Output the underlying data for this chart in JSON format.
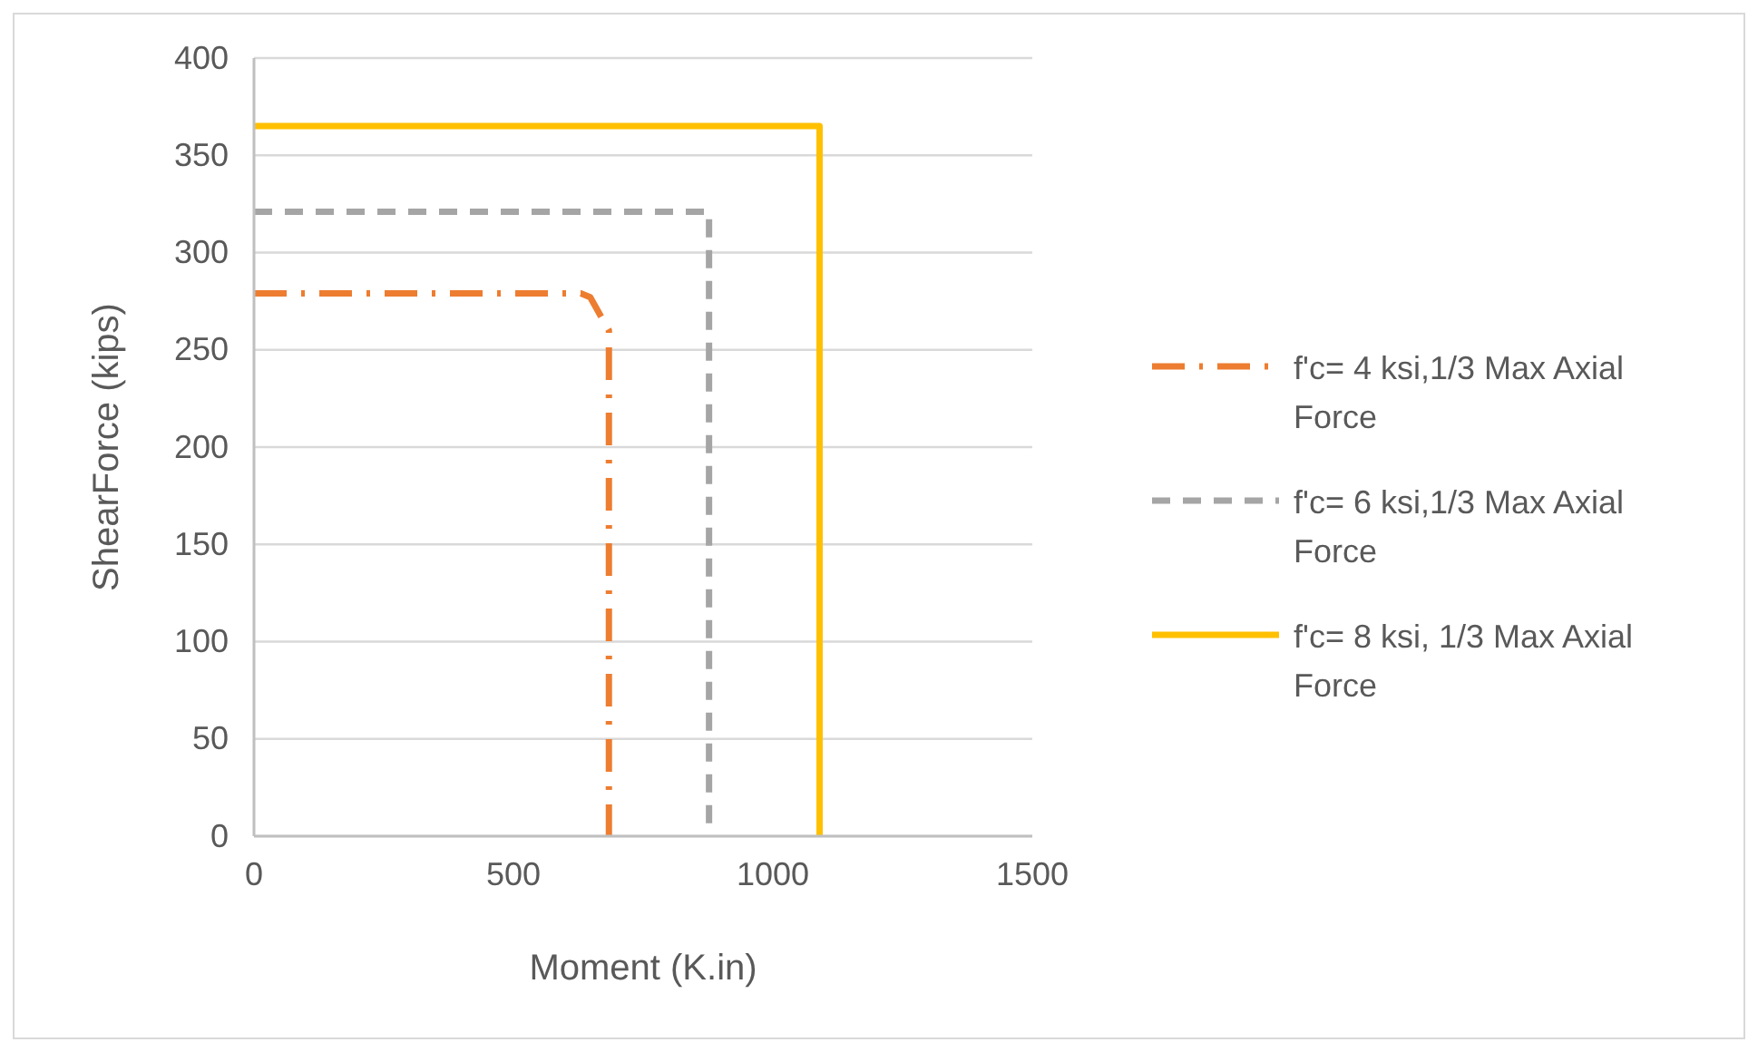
{
  "chart_data": {
    "type": "line",
    "xlabel": "Moment (K.in)",
    "ylabel": "ShearForce (kips)",
    "xlim": [
      0,
      1500
    ],
    "xticks": [
      0,
      500,
      1000,
      1500
    ],
    "ylim": [
      0,
      400
    ],
    "yticks": [
      0,
      50,
      100,
      150,
      200,
      250,
      300,
      350,
      400
    ],
    "grid": "y",
    "legend": "right",
    "marker": "none",
    "series": [
      {
        "name": "f'c= 4 ksi,1/3 Max Axial Force",
        "color": "#ed7d31",
        "line_style": "dashdot",
        "x": [
          0,
          630,
          648,
          684,
          684
        ],
        "values": [
          279,
          279,
          277,
          260,
          0
        ]
      },
      {
        "name": "f'c= 6 ksi,1/3 Max Axial Force",
        "color": "#a5a5a5",
        "line_style": "dashed",
        "x": [
          0,
          877,
          877
        ],
        "values": [
          321,
          321,
          0
        ]
      },
      {
        "name": "f'c= 8 ksi, 1/3 Max Axial Force",
        "color": "#ffc000",
        "line_style": "solid",
        "x": [
          0,
          1090,
          1090
        ],
        "values": [
          365,
          365,
          0
        ]
      }
    ]
  }
}
